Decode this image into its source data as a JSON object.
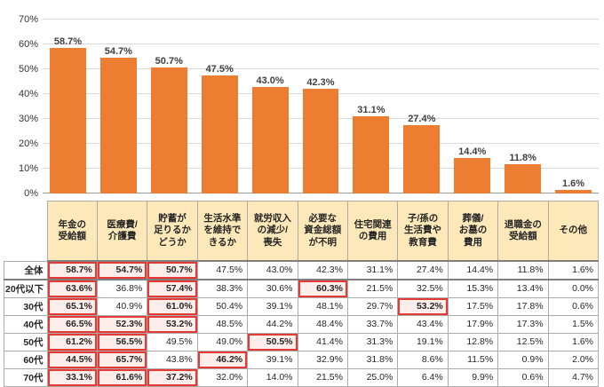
{
  "chart_data": {
    "type": "bar",
    "title": "",
    "categories": [
      "年金の受給額",
      "医療費/介護費",
      "貯蓄が足りるかどうか",
      "生活水準を維持できるか",
      "就労収入の減少/喪失",
      "必要な資金総額が不明",
      "住宅関連の費用",
      "子/孫の生活費や教育費",
      "葬儀/お墓の費用",
      "退職金の受給額",
      "その他"
    ],
    "values": [
      58.7,
      54.7,
      50.7,
      47.5,
      43.0,
      42.3,
      31.1,
      27.4,
      14.4,
      11.8,
      1.6
    ],
    "value_labels": [
      "58.7%",
      "54.7%",
      "50.7%",
      "47.5%",
      "43.0%",
      "42.3%",
      "31.1%",
      "27.4%",
      "14.4%",
      "11.8%",
      "1.6%"
    ],
    "xlabel": "",
    "ylabel": "",
    "ylim": [
      0,
      70
    ],
    "ytick_labels": [
      "0%",
      "10%",
      "20%",
      "30%",
      "40%",
      "50%",
      "60%",
      "70%"
    ],
    "grid": true,
    "legend": "none",
    "bar_color": "#ED7D31"
  },
  "table": {
    "header_bg_color": "#FCE8B8",
    "highlight_border_color": "#E53935",
    "highlight_bg_color": "#FDEEEA",
    "col_headers": [
      "年金の\n受給額",
      "医療費/\n介護費",
      "貯蓄が\n足りるか\nどうか",
      "生活水準\nを維持で\nきるか",
      "就労収入\nの減少/\n喪失",
      "必要な\n資金総額\nが不明",
      "住宅関連\nの費用",
      "子/孫の\n生活費や\n教育費",
      "葬儀/\nお墓の\n費用",
      "退職金の\n受給額",
      "その他"
    ],
    "rows": [
      {
        "label": "全体",
        "values": [
          "58.7%",
          "54.7%",
          "50.7%",
          "47.5%",
          "43.0%",
          "42.3%",
          "31.1%",
          "27.4%",
          "14.4%",
          "11.8%",
          "1.6%"
        ],
        "highlights": [
          0,
          1,
          2
        ]
      },
      {
        "label": "20代以下",
        "values": [
          "63.6%",
          "36.8%",
          "57.4%",
          "38.3%",
          "30.6%",
          "60.3%",
          "21.5%",
          "32.5%",
          "15.3%",
          "13.4%",
          "0.0%"
        ],
        "highlights": [
          0,
          2,
          5
        ]
      },
      {
        "label": "30代",
        "values": [
          "65.1%",
          "40.9%",
          "61.0%",
          "50.4%",
          "39.1%",
          "48.1%",
          "29.7%",
          "53.2%",
          "17.5%",
          "17.8%",
          "0.6%"
        ],
        "highlights": [
          0,
          2,
          7
        ]
      },
      {
        "label": "40代",
        "values": [
          "66.5%",
          "52.3%",
          "53.2%",
          "48.5%",
          "44.2%",
          "48.4%",
          "33.7%",
          "43.4%",
          "17.9%",
          "17.3%",
          "1.5%"
        ],
        "highlights": [
          0,
          1,
          2
        ]
      },
      {
        "label": "50代",
        "values": [
          "61.2%",
          "56.5%",
          "49.5%",
          "49.0%",
          "50.5%",
          "41.4%",
          "31.3%",
          "19.1%",
          "12.8%",
          "12.5%",
          "1.6%"
        ],
        "highlights": [
          0,
          1,
          4
        ]
      },
      {
        "label": "60代",
        "values": [
          "44.5%",
          "65.7%",
          "43.8%",
          "46.2%",
          "39.1%",
          "32.9%",
          "31.8%",
          "8.6%",
          "11.5%",
          "0.9%",
          "2.0%"
        ],
        "highlights": [
          0,
          1,
          3
        ]
      },
      {
        "label": "70代",
        "values": [
          "33.1%",
          "61.6%",
          "37.2%",
          "32.0%",
          "14.0%",
          "21.5%",
          "25.0%",
          "6.4%",
          "9.9%",
          "0.6%",
          "4.7%"
        ],
        "highlights": [
          0,
          1,
          2
        ]
      }
    ]
  }
}
